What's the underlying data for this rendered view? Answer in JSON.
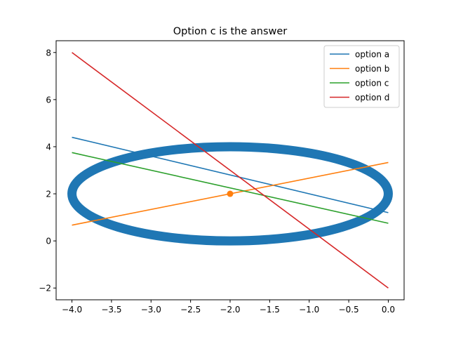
{
  "chart_data": {
    "type": "line",
    "title": "Option c is the answer",
    "xlabel": "",
    "ylabel": "",
    "xlim": [
      -4.2,
      0.2
    ],
    "ylim": [
      -2.5,
      8.5
    ],
    "x_ticks": [
      -4.0,
      -3.5,
      -3.0,
      -2.5,
      -2.0,
      -1.5,
      -1.0,
      -0.5,
      0.0
    ],
    "x_tick_labels": [
      "−4.0",
      "−3.5",
      "−3.0",
      "−2.5",
      "−2.0",
      "−1.5",
      "−1.0",
      "−0.5",
      "0.0"
    ],
    "y_ticks": [
      -2,
      0,
      2,
      4,
      6,
      8
    ],
    "y_tick_labels": [
      "−2",
      "0",
      "2",
      "4",
      "6",
      "8"
    ],
    "grid": false,
    "legend_position": "top-right",
    "ellipse": {
      "center": [
        -2,
        2
      ],
      "rx": 2,
      "ry": 2,
      "color": "#1f77b4"
    },
    "point": {
      "x": -2,
      "y": 2,
      "color": "#ff7f0e"
    },
    "series": [
      {
        "name": "option a",
        "color": "#1f77b4",
        "x": [
          -4,
          0
        ],
        "y": [
          4.4,
          1.2
        ]
      },
      {
        "name": "option b",
        "color": "#ff7f0e",
        "x": [
          -4,
          0
        ],
        "y": [
          0.67,
          3.33
        ]
      },
      {
        "name": "option c",
        "color": "#2ca02c",
        "x": [
          -4,
          0
        ],
        "y": [
          3.75,
          0.75
        ]
      },
      {
        "name": "option d",
        "color": "#d62728",
        "x": [
          -4,
          0
        ],
        "y": [
          8,
          -2
        ]
      }
    ]
  }
}
